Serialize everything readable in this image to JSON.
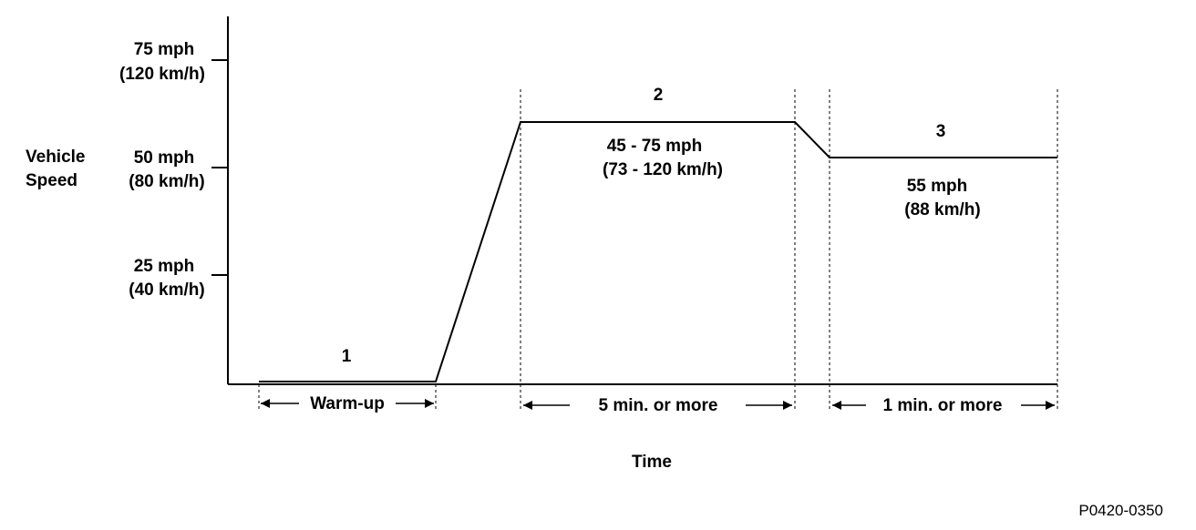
{
  "y_axis": {
    "label_line1": "Vehicle",
    "label_line2": "Speed",
    "ticks": [
      {
        "mph": "75 mph",
        "kmh": "(120 km/h)"
      },
      {
        "mph": "50 mph",
        "kmh": "(80 km/h)"
      },
      {
        "mph": "25 mph",
        "kmh": "(40 km/h)"
      }
    ]
  },
  "x_axis": {
    "label": "Time"
  },
  "phases": [
    {
      "number": "1",
      "duration": "Warm-up"
    },
    {
      "number": "2",
      "speed_line1": "45 - 75 mph",
      "speed_line2": "(73 - 120 km/h)",
      "duration": "5 min. or more"
    },
    {
      "number": "3",
      "speed_line1": "55 mph",
      "speed_line2": "(88 km/h)",
      "duration": "1 min. or more"
    }
  ],
  "figure_id": "P0420-0350"
}
